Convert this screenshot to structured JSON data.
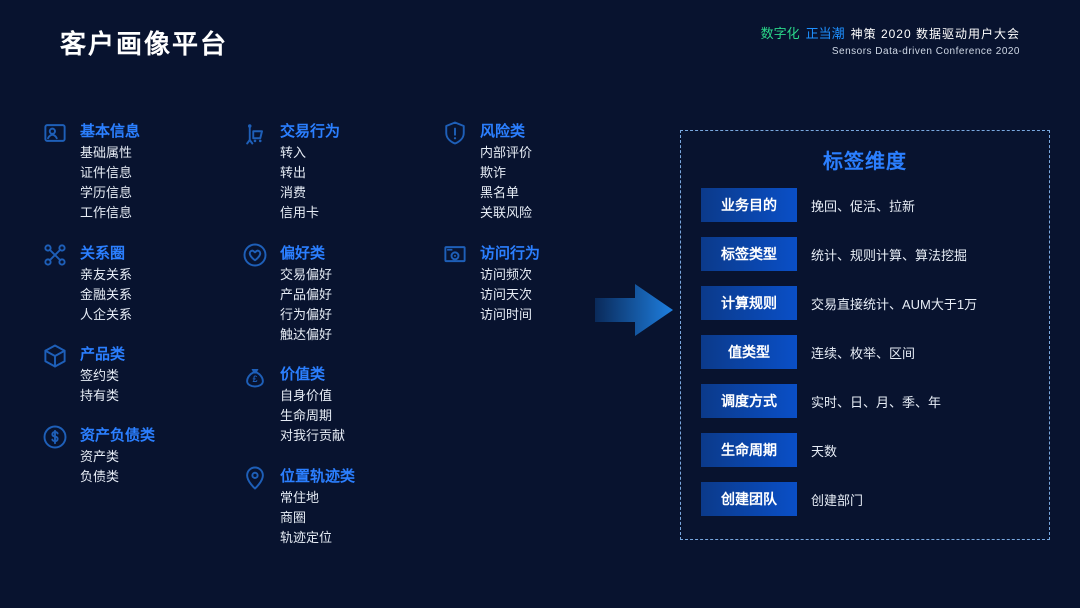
{
  "title": "客户画像平台",
  "brand_tagline1": "数字化",
  "brand_tagline2": "正当潮",
  "brand_cn": "神策 2020 数据驱动用户大会",
  "brand_en": "Sensors Data-driven Conference 2020",
  "colors": {
    "bg": "#08132f",
    "accent": "#2b7fff",
    "chip_grad_from": "#0b3a8a",
    "chip_grad_to": "#0a4fc7",
    "text": "#e6ecf5",
    "icon": "#1e5fb8",
    "dash_border": "#7aa9e0"
  },
  "columns": [
    [
      {
        "icon": "id-card",
        "title": "基本信息",
        "items": [
          "基础属性",
          "证件信息",
          "学历信息",
          "工作信息"
        ]
      },
      {
        "icon": "network",
        "title": "关系圈",
        "items": [
          "亲友关系",
          "金融关系",
          "人企关系"
        ]
      },
      {
        "icon": "cube",
        "title": "产品类",
        "items": [
          "签约类",
          "持有类"
        ]
      },
      {
        "icon": "dollar",
        "title": "资产负债类",
        "items": [
          "资产类",
          "负债类"
        ]
      }
    ],
    [
      {
        "icon": "cart",
        "title": "交易行为",
        "items": [
          "转入",
          "转出",
          "消费",
          "信用卡"
        ]
      },
      {
        "icon": "heart",
        "title": "偏好类",
        "items": [
          "交易偏好",
          "产品偏好",
          "行为偏好",
          "触达偏好"
        ]
      },
      {
        "icon": "money-bag",
        "title": "价值类",
        "items": [
          "自身价值",
          "生命周期",
          "对我行贡献"
        ]
      },
      {
        "icon": "location",
        "title": "位置轨迹类",
        "items": [
          "常住地",
          "商圈",
          "轨迹定位"
        ]
      }
    ],
    [
      {
        "icon": "shield",
        "title": "风险类",
        "items": [
          "内部评价",
          "欺诈",
          "黑名单",
          "关联风险"
        ]
      },
      {
        "icon": "monitor",
        "title": "访问行为",
        "items": [
          "访问频次",
          "访问天次",
          "访问时间"
        ]
      }
    ]
  ],
  "dim_title": "标签维度",
  "dims": [
    {
      "label": "业务目的",
      "value": "挽回、促活、拉新"
    },
    {
      "label": "标签类型",
      "value": "统计、规则计算、算法挖掘"
    },
    {
      "label": "计算规则",
      "value": "交易直接统计、AUM大于1万"
    },
    {
      "label": "值类型",
      "value": "连续、枚举、区间"
    },
    {
      "label": "调度方式",
      "value": "实时、日、月、季、年"
    },
    {
      "label": "生命周期",
      "value": "天数"
    },
    {
      "label": "创建团队",
      "value": "创建部门"
    }
  ]
}
